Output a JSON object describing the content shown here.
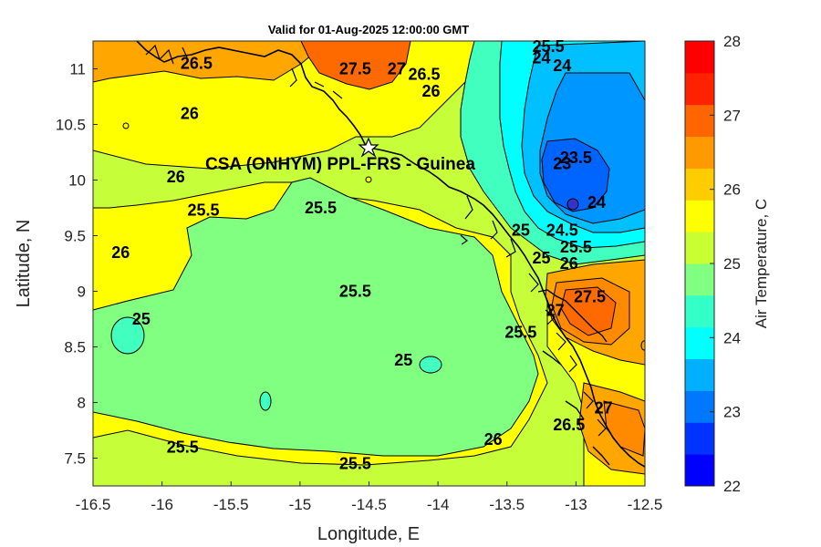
{
  "title": "Valid for 01-Aug-2025 12:00:00 GMT",
  "map": {
    "xlabel": "Longitude, E",
    "ylabel": "Latitude, N",
    "xlim": [
      -16.5,
      -12.5
    ],
    "ylim": [
      7.25,
      11.25
    ],
    "xticks": [
      "-16.5",
      "-16",
      "-15.5",
      "-15",
      "-14.5",
      "-14",
      "-13.5",
      "-13",
      "-12.5"
    ],
    "yticks": [
      "7.5",
      "8",
      "8.5",
      "9",
      "9.5",
      "10",
      "10.5",
      "11"
    ],
    "station": {
      "name": "CSA (ONHYM) PPL-FRS  - Guinea",
      "lon": -14.5,
      "lat": 10.28
    },
    "contour_labels": [
      {
        "text": "26.5",
        "lon": -15.75,
        "lat": 11.0
      },
      {
        "text": "27.5",
        "lon": -14.6,
        "lat": 10.95
      },
      {
        "text": "27",
        "lon": -14.3,
        "lat": 10.95
      },
      {
        "text": "26.5",
        "lon": -14.1,
        "lat": 10.9
      },
      {
        "text": "26",
        "lon": -14.05,
        "lat": 10.75
      },
      {
        "text": "25.5",
        "lon": -13.2,
        "lat": 11.15
      },
      {
        "text": "24",
        "lon": -13.25,
        "lat": 11.05
      },
      {
        "text": "24",
        "lon": -13.1,
        "lat": 10.98
      },
      {
        "text": "26",
        "lon": -15.8,
        "lat": 10.55
      },
      {
        "text": "26",
        "lon": -15.9,
        "lat": 9.98
      },
      {
        "text": "25.5",
        "lon": -15.7,
        "lat": 9.68
      },
      {
        "text": "25.5",
        "lon": -14.85,
        "lat": 9.7
      },
      {
        "text": "26",
        "lon": -16.3,
        "lat": 9.3
      },
      {
        "text": "23",
        "lon": -13.1,
        "lat": 10.1
      },
      {
        "text": "23.5",
        "lon": -13.0,
        "lat": 10.15
      },
      {
        "text": "24",
        "lon": -12.85,
        "lat": 9.75
      },
      {
        "text": "24.5",
        "lon": -13.1,
        "lat": 9.5
      },
      {
        "text": "25",
        "lon": -13.4,
        "lat": 9.5
      },
      {
        "text": "25.5",
        "lon": -13.0,
        "lat": 9.35
      },
      {
        "text": "26",
        "lon": -13.05,
        "lat": 9.2
      },
      {
        "text": "25",
        "lon": -13.25,
        "lat": 9.25
      },
      {
        "text": "25.5",
        "lon": -14.6,
        "lat": 8.95
      },
      {
        "text": "25",
        "lon": -16.15,
        "lat": 8.7
      },
      {
        "text": "27.5",
        "lon": -12.9,
        "lat": 8.9
      },
      {
        "text": "27",
        "lon": -13.15,
        "lat": 8.78
      },
      {
        "text": "25.5",
        "lon": -13.4,
        "lat": 8.58
      },
      {
        "text": "25",
        "lon": -14.25,
        "lat": 8.33
      },
      {
        "text": "27",
        "lon": -12.8,
        "lat": 7.9
      },
      {
        "text": "26.5",
        "lon": -13.05,
        "lat": 7.75
      },
      {
        "text": "26",
        "lon": -13.6,
        "lat": 7.62
      },
      {
        "text": "25.5",
        "lon": -15.85,
        "lat": 7.55
      },
      {
        "text": "25.5",
        "lon": -14.6,
        "lat": 7.4
      }
    ]
  },
  "colorbar": {
    "label": "Air Temperature, C",
    "min": 22,
    "max": 28,
    "ticks": [
      "22",
      "23",
      "24",
      "25",
      "26",
      "27",
      "28"
    ],
    "levels": [
      "#0000ff",
      "#0033ff",
      "#0077ff",
      "#00b0ff",
      "#00ffff",
      "#33ffc8",
      "#80ff80",
      "#c8ff33",
      "#ffff00",
      "#ffcc00",
      "#ff9900",
      "#ff6600",
      "#ff2200",
      "#ff0000"
    ]
  },
  "palette": {
    "orange": "#ffa600",
    "yellow": "#ffff00",
    "ygreen": "#c6ff3a",
    "green": "#80ff80",
    "teal": "#40ffbf",
    "cyan": "#00ffff",
    "sky": "#00c0ff",
    "blue1": "#0096ff",
    "blue2": "#0064ff",
    "red": "#ff6a00",
    "darkorange": "#ff8a00"
  }
}
